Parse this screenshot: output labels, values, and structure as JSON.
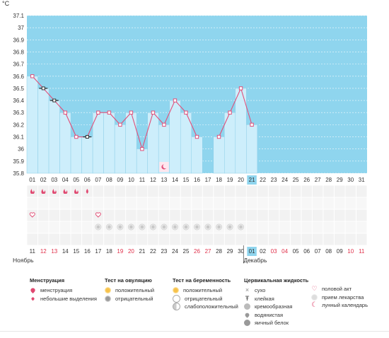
{
  "chart_data": {
    "type": "line",
    "unit_label": "°C",
    "ylim": [
      35.8,
      37.1
    ],
    "yticks": [
      "37.1",
      "37",
      "36.9",
      "36.8",
      "36.7",
      "36.6",
      "36.5",
      "36.4",
      "36.3",
      "36.2",
      "36.1",
      "36",
      "35.9",
      "35.8"
    ],
    "cycle_days": [
      "01",
      "02",
      "03",
      "04",
      "05",
      "06",
      "07",
      "08",
      "09",
      "10",
      "11",
      "12",
      "13",
      "14",
      "15",
      "16",
      "17",
      "18",
      "19",
      "20",
      "21",
      "22",
      "23",
      "24",
      "25",
      "26",
      "27",
      "28",
      "29",
      "30",
      "31"
    ],
    "current_day_index": 20,
    "temperatures": [
      36.6,
      36.5,
      36.4,
      36.3,
      36.1,
      36.1,
      36.3,
      36.3,
      36.2,
      36.3,
      36.0,
      36.3,
      36.2,
      36.4,
      36.3,
      36.1,
      null,
      36.1,
      36.3,
      36.5,
      36.2
    ],
    "calendar_dates": [
      "11",
      "12",
      "13",
      "14",
      "15",
      "16",
      "17",
      "18",
      "19",
      "20",
      "21",
      "22",
      "23",
      "24",
      "25",
      "26",
      "27",
      "28",
      "29",
      "30",
      "01",
      "02",
      "03",
      "04",
      "05",
      "06",
      "07",
      "08",
      "09",
      "10",
      "11"
    ],
    "weekend_indices": [
      1,
      2,
      8,
      9,
      15,
      16,
      22,
      23,
      29,
      30
    ],
    "month_labels": [
      {
        "label": "Ноябрь",
        "index": 0
      },
      {
        "label": "Декабрь",
        "index": 20
      }
    ],
    "menstruation_days": [
      0,
      1,
      2,
      3,
      4
    ],
    "light_discharge_days": [
      5
    ],
    "intercourse_days": [
      0,
      6
    ],
    "medication_days": [
      6,
      7,
      8,
      9,
      10,
      11,
      12,
      13,
      14,
      15,
      16,
      17,
      18,
      19
    ],
    "lunar_calendar_days": [
      12
    ],
    "hollow_marker_days": [
      1,
      2,
      5
    ]
  },
  "colors": {
    "plot_bg": "#8fd5ee",
    "bar_fill": "#cdeefb",
    "bar_stroke": "#8ecfe8",
    "line": "#e0507a",
    "marker": "#e0507a",
    "current_day": "#8fd5ee",
    "weekend_text": "#e0304a"
  },
  "legend": {
    "menstruation": {
      "title": "Менструация",
      "items": [
        {
          "icon": "drop",
          "label": "менструация"
        },
        {
          "icon": "small-drop",
          "label": "небольшие выделения"
        }
      ]
    },
    "ovulation": {
      "title": "Тест на овуляцию",
      "items": [
        {
          "icon": "sun",
          "label": "положительный"
        },
        {
          "icon": "gray-sun",
          "label": "отрицательный"
        }
      ]
    },
    "pregnancy": {
      "title": "Тест на беременность",
      "items": [
        {
          "icon": "sun",
          "label": "положительный"
        },
        {
          "icon": "ring",
          "label": "отрицательный"
        },
        {
          "icon": "half-ring",
          "label": "слабоположительный"
        }
      ]
    },
    "cervical": {
      "title": "Цервикальная жидкость",
      "items": [
        {
          "icon": "x",
          "label": "сухо"
        },
        {
          "icon": "t",
          "label": "клейкая"
        },
        {
          "icon": "dot",
          "label": "кремообразная"
        },
        {
          "icon": "gray-drop",
          "label": "водянистая"
        },
        {
          "icon": "egg",
          "label": "яичный белок"
        }
      ]
    },
    "other": {
      "items": [
        {
          "icon": "heart",
          "label": "половой акт"
        },
        {
          "icon": "pill",
          "label": "прием лекарства"
        },
        {
          "icon": "moon",
          "label": "лунный календарь"
        }
      ]
    }
  }
}
